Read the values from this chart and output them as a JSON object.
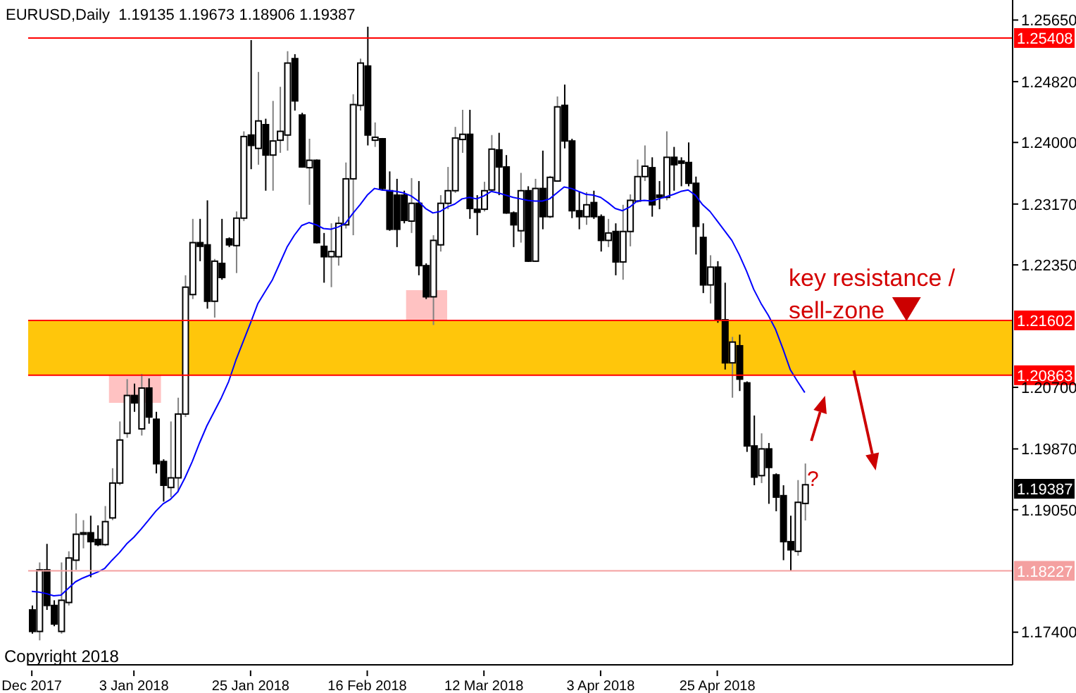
{
  "chart_data": {
    "type": "candlestick",
    "title": "EURUSD,Daily  1.19135 1.19673 1.18906 1.19387",
    "categories": [
      "Dec 2017",
      null,
      null,
      null,
      null,
      null,
      null,
      null,
      null,
      null,
      null,
      null,
      null,
      null,
      "3 Jan 2018",
      null,
      null,
      null,
      null,
      null,
      null,
      null,
      null,
      null,
      null,
      null,
      null,
      null,
      null,
      null,
      "25 Jan 2018",
      null,
      null,
      null,
      null,
      null,
      null,
      null,
      null,
      null,
      null,
      null,
      null,
      null,
      null,
      null,
      "16 Feb 2018",
      null,
      null,
      null,
      null,
      null,
      null,
      null,
      null,
      null,
      null,
      null,
      null,
      null,
      null,
      null,
      "12 Mar 2018",
      null,
      null,
      null,
      null,
      null,
      null,
      null,
      null,
      null,
      null,
      null,
      null,
      null,
      null,
      null,
      "3 Apr 2018",
      null,
      null,
      null,
      null,
      null,
      null,
      null,
      null,
      null,
      null,
      null,
      null,
      null,
      null,
      null,
      "25 Apr 2018",
      null,
      null,
      null,
      null,
      null,
      null,
      null,
      null,
      null,
      null,
      null,
      null
    ],
    "ohlc": [
      [
        1.177,
        1.1776,
        1.1738,
        1.1741
      ],
      [
        1.1741,
        1.1834,
        1.1729,
        1.1824
      ],
      [
        1.1824,
        1.1859,
        1.177,
        1.1776
      ],
      [
        1.1776,
        1.1783,
        1.1748,
        1.1751
      ],
      [
        1.1741,
        1.1834,
        1.1738,
        1.1783
      ],
      [
        1.178,
        1.1849,
        1.1776,
        1.184
      ],
      [
        1.1837,
        1.19,
        1.1824,
        1.1872
      ],
      [
        1.1872,
        1.1891,
        1.1853,
        1.1874
      ],
      [
        1.1874,
        1.1897,
        1.1814,
        1.1862
      ],
      [
        1.1865,
        1.1884,
        1.1856,
        1.1858
      ],
      [
        1.1858,
        1.191,
        1.1856,
        1.1889
      ],
      [
        1.1894,
        1.1961,
        1.1891,
        1.1941
      ],
      [
        1.1941,
        1.2024,
        1.1938,
        1.1999
      ],
      [
        1.2008,
        1.2081,
        1.2002,
        1.2059
      ],
      [
        1.2059,
        1.2075,
        1.2037,
        1.2049
      ],
      [
        1.2014,
        1.2088,
        1.2005,
        1.2069
      ],
      [
        1.2069,
        1.2082,
        1.2021,
        1.203
      ],
      [
        1.2027,
        1.2037,
        1.1954,
        1.1967
      ],
      [
        1.197,
        1.1973,
        1.1916,
        1.1938
      ],
      [
        1.1935,
        1.2024,
        1.1922,
        1.1948
      ],
      [
        1.1948,
        1.2056,
        1.1929,
        1.2034
      ],
      [
        1.2034,
        1.2221,
        1.203,
        1.2205
      ],
      [
        1.2195,
        1.2297,
        1.2189,
        1.2265
      ],
      [
        1.2265,
        1.2297,
        1.224,
        1.226
      ],
      [
        1.2262,
        1.2322,
        1.2176,
        1.2186
      ],
      [
        1.2186,
        1.2243,
        1.2164,
        1.224
      ],
      [
        1.2237,
        1.2297,
        1.2215,
        1.2218
      ],
      [
        1.227,
        1.2272,
        1.2259,
        1.2262
      ],
      [
        1.2261,
        1.2307,
        1.2224,
        1.2298
      ],
      [
        1.2298,
        1.2415,
        1.2294,
        1.2408
      ],
      [
        1.241,
        1.2538,
        1.2364,
        1.2396
      ],
      [
        1.2392,
        1.2495,
        1.237,
        1.2429
      ],
      [
        1.2424,
        1.2432,
        1.2335,
        1.2383
      ],
      [
        1.2383,
        1.2456,
        1.2335,
        1.2402
      ],
      [
        1.2403,
        1.2475,
        1.2386,
        1.2415
      ],
      [
        1.241,
        1.2523,
        1.2389,
        1.2507
      ],
      [
        1.2513,
        1.2519,
        1.2443,
        1.2456
      ],
      [
        1.2437,
        1.244,
        1.2366,
        1.2367
      ],
      [
        1.2366,
        1.2405,
        1.2316,
        1.2376
      ],
      [
        1.2376,
        1.2377,
        1.2264,
        1.2265
      ],
      [
        1.226,
        1.2278,
        1.2211,
        1.2246
      ],
      [
        1.2246,
        1.2291,
        1.2205,
        1.2253
      ],
      [
        1.2246,
        1.23,
        1.2234,
        1.2291
      ],
      [
        1.2289,
        1.2373,
        1.2284,
        1.2351
      ],
      [
        1.2351,
        1.2465,
        1.2275,
        1.2451
      ],
      [
        1.245,
        1.2513,
        1.2443,
        1.2507
      ],
      [
        1.2503,
        1.2556,
        1.2396,
        1.241
      ],
      [
        1.2403,
        1.2427,
        1.2394,
        1.2407
      ],
      [
        1.2405,
        1.2406,
        1.2335,
        1.2338
      ],
      [
        1.2335,
        1.2361,
        1.2281,
        1.2283
      ],
      [
        1.2329,
        1.2351,
        1.2259,
        1.2283
      ],
      [
        1.2329,
        1.2335,
        1.2291,
        1.2295
      ],
      [
        1.2294,
        1.2352,
        1.2278,
        1.2318
      ],
      [
        1.2318,
        1.2348,
        1.2221,
        1.2234
      ],
      [
        1.2234,
        1.2237,
        1.2189,
        1.2192
      ],
      [
        1.2192,
        1.2275,
        1.2154,
        1.2268
      ],
      [
        1.2262,
        1.2329,
        1.2253,
        1.2318
      ],
      [
        1.2318,
        1.2367,
        1.231,
        1.2335
      ],
      [
        1.2335,
        1.2421,
        1.2332,
        1.2406
      ],
      [
        1.2404,
        1.2444,
        1.2386,
        1.2411
      ],
      [
        1.2411,
        1.2444,
        1.2297,
        1.2311
      ],
      [
        1.231,
        1.2329,
        1.2275,
        1.2306
      ],
      [
        1.231,
        1.2347,
        1.2307,
        1.2335
      ],
      [
        1.2336,
        1.241,
        1.2334,
        1.2391
      ],
      [
        1.239,
        1.2413,
        1.2329,
        1.2367
      ],
      [
        1.2367,
        1.2383,
        1.2304,
        1.2305
      ],
      [
        1.2305,
        1.2307,
        1.2259,
        1.2289
      ],
      [
        1.2281,
        1.2359,
        1.2265,
        1.2335
      ],
      [
        1.2335,
        1.2341,
        1.2239,
        1.224
      ],
      [
        1.224,
        1.2351,
        1.2239,
        1.2338
      ],
      [
        1.2338,
        1.2389,
        1.2283,
        1.23
      ],
      [
        1.23,
        1.2355,
        1.2298,
        1.2353
      ],
      [
        1.2348,
        1.2462,
        1.2347,
        1.2448
      ],
      [
        1.245,
        1.2478,
        1.2392,
        1.2402
      ],
      [
        1.2402,
        1.2405,
        1.2298,
        1.2308
      ],
      [
        1.2308,
        1.2333,
        1.2283,
        1.23
      ],
      [
        1.23,
        1.2333,
        1.2289,
        1.2316
      ],
      [
        1.2319,
        1.2335,
        1.2297,
        1.23
      ],
      [
        1.23,
        1.2303,
        1.2253,
        1.2268
      ],
      [
        1.2268,
        1.2297,
        1.2259,
        1.2278
      ],
      [
        1.228,
        1.2291,
        1.2221,
        1.2239
      ],
      [
        1.2239,
        1.2316,
        1.2215,
        1.228
      ],
      [
        1.228,
        1.233,
        1.226,
        1.2322
      ],
      [
        1.2321,
        1.2377,
        1.2319,
        1.2354
      ],
      [
        1.2354,
        1.2396,
        1.2348,
        1.2368
      ],
      [
        1.2366,
        1.238,
        1.23,
        1.2316
      ],
      [
        1.2329,
        1.2348,
        1.231,
        1.2326
      ],
      [
        1.2326,
        1.2415,
        1.2322,
        1.238
      ],
      [
        1.238,
        1.2394,
        1.2335,
        1.237
      ],
      [
        1.2375,
        1.238,
        1.2341,
        1.2372
      ],
      [
        1.2373,
        1.24,
        1.2341,
        1.2345
      ],
      [
        1.2345,
        1.2354,
        1.2249,
        1.2287
      ],
      [
        1.2272,
        1.2291,
        1.2197,
        1.2208
      ],
      [
        1.2208,
        1.2248,
        1.2183,
        1.2232
      ],
      [
        1.2232,
        1.224,
        1.2157,
        1.2161
      ],
      [
        1.2161,
        1.2211,
        1.2094,
        1.2103
      ],
      [
        1.2103,
        1.2138,
        1.2056,
        1.2131
      ],
      [
        1.2126,
        1.2141,
        1.2065,
        1.2081
      ],
      [
        1.2076,
        1.2078,
        1.1983,
        1.1991
      ],
      [
        1.1991,
        1.2032,
        1.1938,
        1.1949
      ],
      [
        1.1951,
        1.2008,
        1.1941,
        1.1987
      ],
      [
        1.1987,
        1.1995,
        1.1913,
        1.1962
      ],
      [
        1.1952,
        1.1954,
        1.1903,
        1.1922
      ],
      [
        1.1924,
        1.1938,
        1.1837,
        1.1862
      ],
      [
        1.1862,
        1.1897,
        1.1823,
        1.1851
      ],
      [
        1.1849,
        1.1945,
        1.1843,
        1.1915
      ],
      [
        1.19135,
        1.19673,
        1.18906,
        1.19387
      ]
    ],
    "series": [
      {
        "type": "line",
        "color": "#0000ff",
        "values": [
          1.1795,
          1.1794,
          1.1792,
          1.1789,
          1.179,
          1.1799,
          1.1808,
          1.1813,
          1.1817,
          1.1821,
          1.1826,
          1.1837,
          1.1847,
          1.1859,
          1.1868,
          1.1879,
          1.1891,
          1.1903,
          1.1913,
          1.1919,
          1.1929,
          1.1948,
          1.197,
          1.1995,
          1.2018,
          1.2037,
          1.2056,
          1.2078,
          1.2107,
          1.2132,
          1.2157,
          1.2183,
          1.2199,
          1.2215,
          1.2237,
          1.2259,
          1.2275,
          1.2288,
          1.2292,
          1.2289,
          1.2284,
          1.2283,
          1.2286,
          1.2291,
          1.2304,
          1.2316,
          1.2329,
          1.2338,
          1.2336,
          1.2335,
          1.2334,
          1.2332,
          1.2328,
          1.2321,
          1.2311,
          1.2305,
          1.2307,
          1.2313,
          1.2317,
          1.2324,
          1.2326,
          1.2324,
          1.2328,
          1.2334,
          1.2332,
          1.2329,
          1.2326,
          1.2324,
          1.2322,
          1.2321,
          1.2321,
          1.2324,
          1.2332,
          1.234,
          1.2338,
          1.2334,
          1.233,
          1.2329,
          1.2326,
          1.2319,
          1.2311,
          1.2308,
          1.2313,
          1.2321,
          1.2322,
          1.2321,
          1.2324,
          1.2327,
          1.233,
          1.2334,
          1.2336,
          1.2329,
          1.2316,
          1.2307,
          1.2294,
          1.2281,
          1.2268,
          1.2249,
          1.2227,
          1.2202,
          1.2183,
          1.2167,
          1.2148,
          1.2122,
          1.2094,
          1.2078,
          1.2063
        ]
      }
    ],
    "ylim": [
      1.1696,
      1.2592
    ],
    "yticks": [
      {
        "value": 1.174,
        "label": "1.17400"
      },
      {
        "value": 1.1905,
        "label": "1.19050"
      },
      {
        "value": 1.1987,
        "label": "1.19870"
      },
      {
        "value": 1.207,
        "label": "1.20700"
      },
      {
        "value": 1.2235,
        "label": "1.22350"
      },
      {
        "value": 1.2317,
        "label": "1.23170"
      },
      {
        "value": 1.24,
        "label": "1.24000"
      },
      {
        "value": 1.2482,
        "label": "1.24820"
      },
      {
        "value": 1.2565,
        "label": "1.25650"
      }
    ],
    "bands": [
      {
        "axis": "y",
        "from": 1.20863,
        "to": 1.21602,
        "color": "#ffc60b"
      }
    ],
    "ref_lines": [
      {
        "axis": "y",
        "value": 1.25408,
        "label": "1.25408",
        "color": "#ff0000"
      },
      {
        "axis": "y",
        "value": 1.21602,
        "label": "1.21602",
        "color": "#ff0000"
      },
      {
        "axis": "y",
        "value": 1.20863,
        "label": "1.20863",
        "color": "#ff0000"
      },
      {
        "axis": "y",
        "value": 1.18227,
        "label": "1.18227",
        "color": "#f4a0a0"
      }
    ],
    "annotations": [
      "key resistance /\nsell-zone",
      "?",
      "Copyright 2018",
      "1.19387"
    ]
  }
}
